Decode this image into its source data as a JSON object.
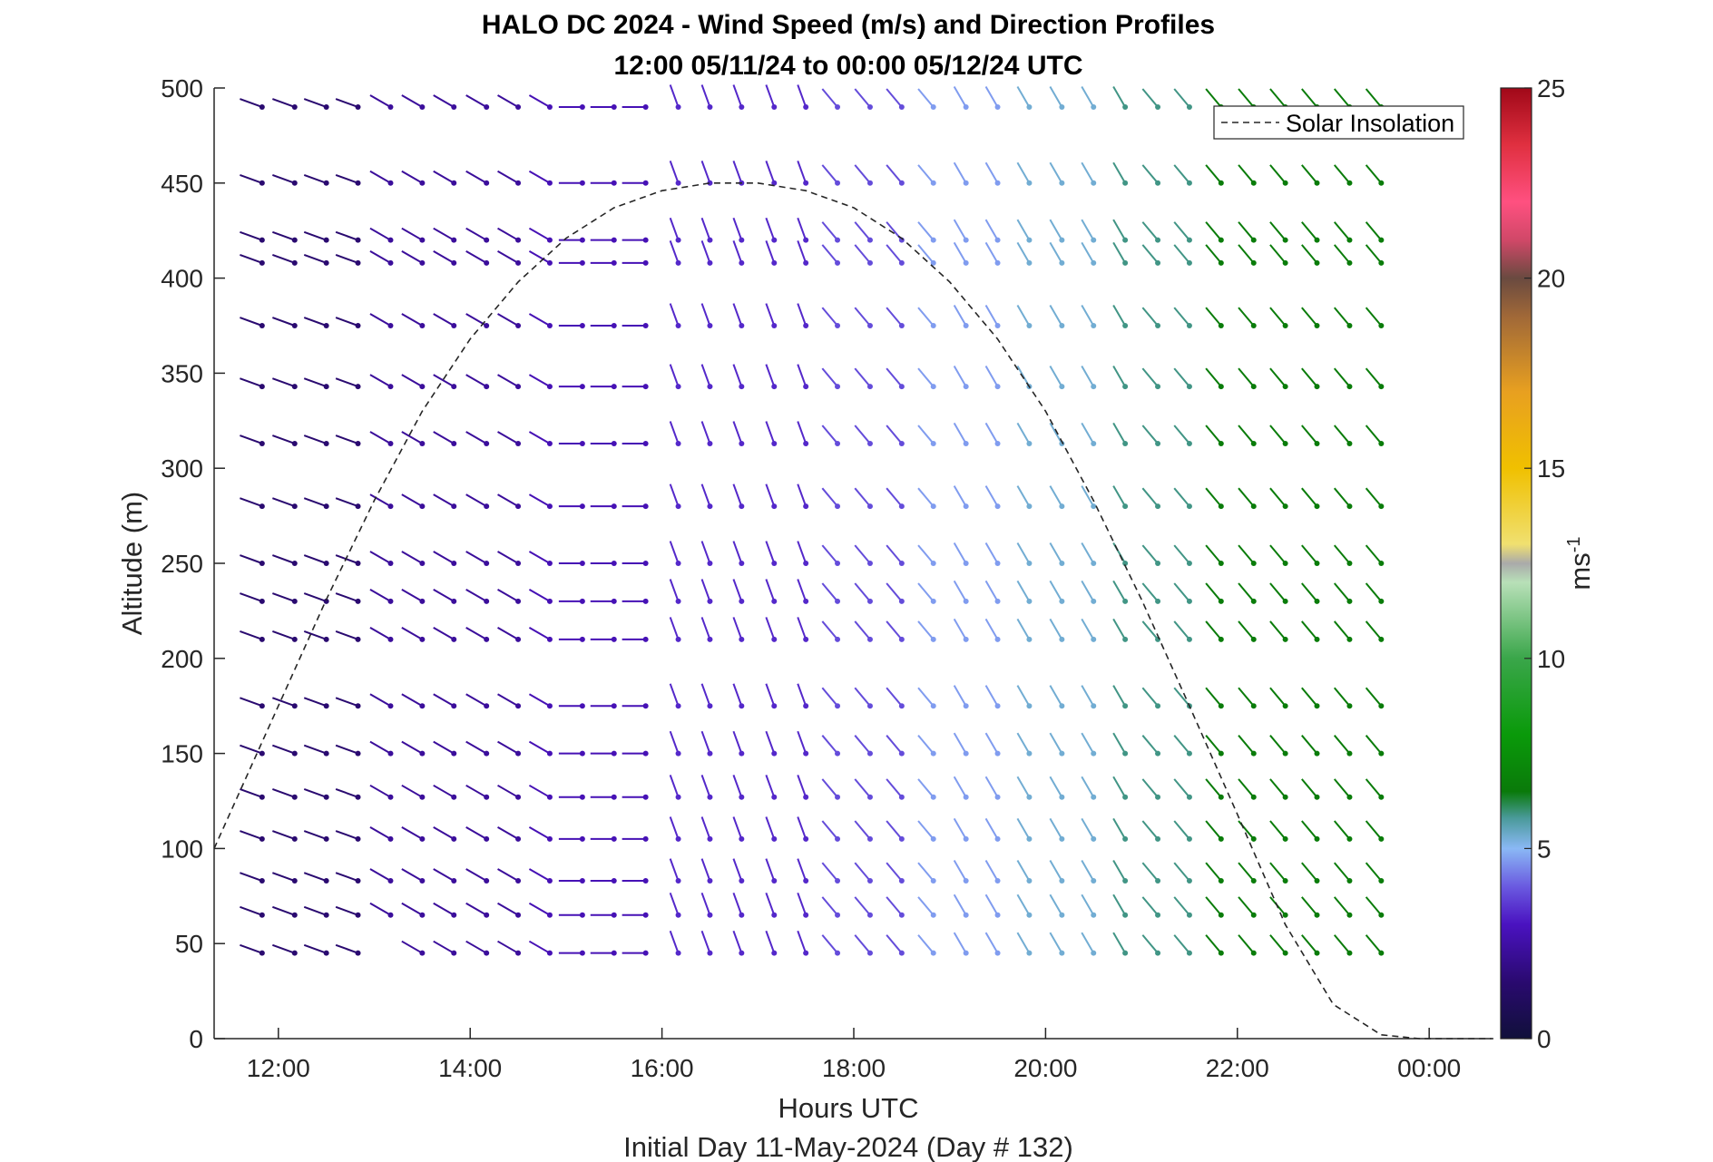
{
  "chart_data": {
    "type": "wind_barb_profile",
    "title_line1": "HALO DC 2024 - Wind Speed (m/s) and Direction Profiles",
    "title_line2": "12:00 05/11/24 to 00:00 05/12/24  UTC",
    "xlabel": "Hours UTC",
    "xlabel2": "Initial Day 11-May-2024 (Day # 132)",
    "ylabel": "Altitude (m)",
    "xlim": [
      11.33,
      24.67
    ],
    "ylim": [
      0,
      500
    ],
    "x_ticks": [
      12,
      14,
      16,
      18,
      20,
      22,
      24
    ],
    "x_tick_labels": [
      "12:00",
      "14:00",
      "16:00",
      "18:00",
      "20:00",
      "22:00",
      "00:00"
    ],
    "y_ticks": [
      0,
      50,
      100,
      150,
      200,
      250,
      300,
      350,
      400,
      450,
      500
    ],
    "y_tick_labels": [
      "0",
      "50",
      "100",
      "150",
      "200",
      "250",
      "300",
      "350",
      "400",
      "450",
      "500"
    ],
    "legend": {
      "entries": [
        "Solar Insolation"
      ],
      "location": "top-right"
    },
    "colorbar": {
      "label": "ms-1",
      "label_base": "ms",
      "label_exp": "-1",
      "range": [
        0,
        25
      ],
      "ticks": [
        0,
        5,
        10,
        15,
        20,
        25
      ],
      "tick_labels": [
        "0",
        "5",
        "10",
        "15",
        "20",
        "25"
      ],
      "colormap": [
        {
          "v": 0,
          "c": "#10103a"
        },
        {
          "v": 1.5,
          "c": "#2a0a70"
        },
        {
          "v": 3,
          "c": "#4a12c0"
        },
        {
          "v": 4,
          "c": "#6a5ae0"
        },
        {
          "v": 5,
          "c": "#8ab8f5"
        },
        {
          "v": 5.8,
          "c": "#4a9a9a"
        },
        {
          "v": 6.5,
          "c": "#0a7a0a"
        },
        {
          "v": 8,
          "c": "#0a9a0a"
        },
        {
          "v": 10,
          "c": "#3aa64a"
        },
        {
          "v": 12,
          "c": "#b8e0b8"
        },
        {
          "v": 12.5,
          "c": "#aaaaaa"
        },
        {
          "v": 13,
          "c": "#f0e070"
        },
        {
          "v": 15,
          "c": "#f0c000"
        },
        {
          "v": 17,
          "c": "#e8a020"
        },
        {
          "v": 19,
          "c": "#a06838"
        },
        {
          "v": 20,
          "c": "#6a4a40"
        },
        {
          "v": 21,
          "c": "#d04868"
        },
        {
          "v": 22,
          "c": "#ff5080"
        },
        {
          "v": 23.5,
          "c": "#e03040"
        },
        {
          "v": 25,
          "c": "#a00818"
        }
      ]
    },
    "times_hours": [
      11.83,
      12.17,
      12.5,
      12.83,
      13.17,
      13.5,
      13.83,
      14.17,
      14.5,
      14.83,
      15.17,
      15.5,
      15.83,
      16.17,
      16.5,
      16.83,
      17.17,
      17.5,
      17.83,
      18.17,
      18.5,
      18.83,
      19.17,
      19.5,
      19.83,
      20.17,
      20.5,
      20.83,
      21.17,
      21.5,
      21.83,
      22.17,
      22.5,
      22.83,
      23.17,
      23.5
    ],
    "altitudes_m": [
      45,
      65,
      83,
      105,
      127,
      150,
      175,
      210,
      230,
      250,
      280,
      313,
      343,
      375,
      408,
      420,
      450,
      490
    ],
    "direction_regimes_deg": [
      {
        "t_end": 13.0,
        "alt_max": 500,
        "dir": 290
      },
      {
        "t_end": 15.0,
        "alt_max": 500,
        "dir": 300
      },
      {
        "t_end": 16.0,
        "alt_max": 500,
        "dir": 270
      },
      {
        "t_end": 17.5,
        "alt_max": 500,
        "dir": 340
      },
      {
        "t_end": 19.0,
        "alt_max": 500,
        "dir": 320
      },
      {
        "t_end": 21.0,
        "alt_max": 500,
        "dir": 330
      },
      {
        "t_end": 24.0,
        "alt_max": 500,
        "dir": 320
      }
    ],
    "speed_regimes_ms": [
      {
        "t_end": 13.0,
        "speed": 1.5
      },
      {
        "t_end": 14.5,
        "speed": 2.3
      },
      {
        "t_end": 16.0,
        "speed": 2.8
      },
      {
        "t_end": 17.5,
        "speed": 3.3
      },
      {
        "t_end": 18.5,
        "speed": 3.8
      },
      {
        "t_end": 19.5,
        "speed": 4.7
      },
      {
        "t_end": 20.5,
        "speed": 5.3
      },
      {
        "t_end": 21.5,
        "speed": 5.9
      },
      {
        "t_end": 24.0,
        "speed": 6.6
      }
    ],
    "solar_insolation_curve": {
      "x": [
        11.33,
        12.0,
        12.5,
        13.0,
        13.5,
        14.0,
        14.5,
        15.0,
        15.5,
        16.0,
        16.5,
        17.0,
        17.5,
        18.0,
        18.5,
        19.0,
        19.5,
        20.0,
        20.5,
        21.0,
        21.5,
        22.0,
        22.5,
        23.0,
        23.5,
        23.9,
        24.67
      ],
      "y": [
        100,
        175,
        231,
        283,
        330,
        368,
        398,
        421,
        437,
        446,
        450,
        450,
        446,
        437,
        421,
        398,
        368,
        330,
        283,
        231,
        175,
        118,
        60,
        18,
        2,
        0,
        0
      ]
    },
    "grid": false
  }
}
